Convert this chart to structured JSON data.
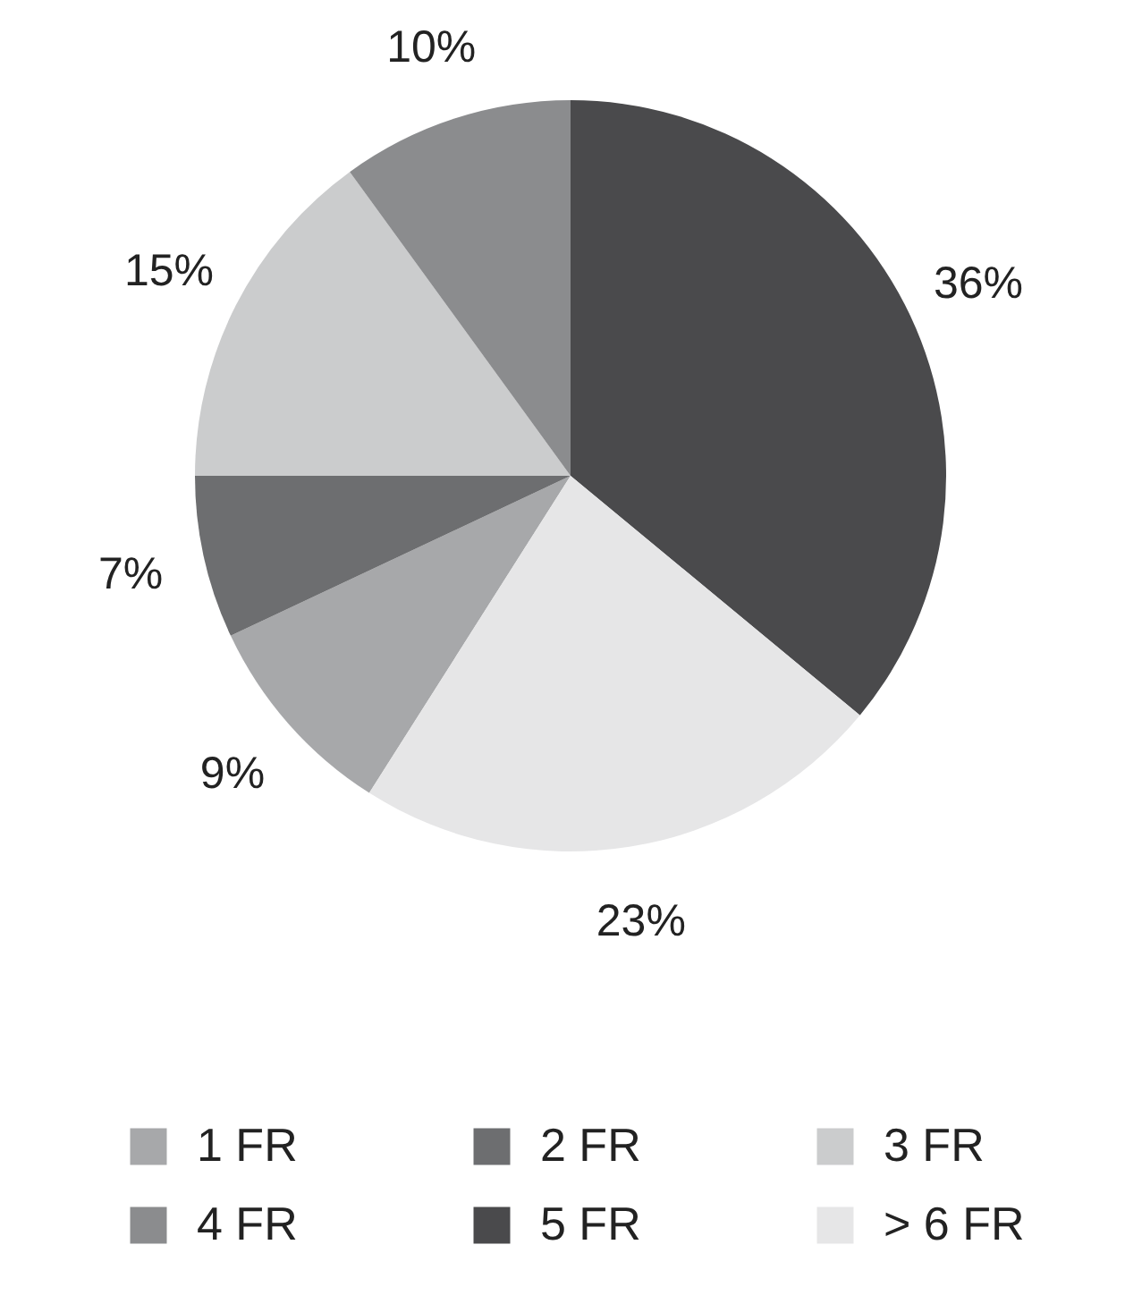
{
  "chart_data": {
    "type": "pie",
    "categories": [
      "1 FR",
      "2 FR",
      "3 FR",
      "4 FR",
      "5 FR",
      "> 6 FR"
    ],
    "values": [
      9,
      7,
      15,
      10,
      36,
      23
    ],
    "value_labels": [
      "9%",
      "7%",
      "15%",
      "10%",
      "36%",
      "23%"
    ],
    "colors": [
      "#a7a8aa",
      "#6d6e70",
      "#cbcccd",
      "#8b8c8e",
      "#4a4a4c",
      "#e6e6e7"
    ],
    "legend": "bottom"
  }
}
